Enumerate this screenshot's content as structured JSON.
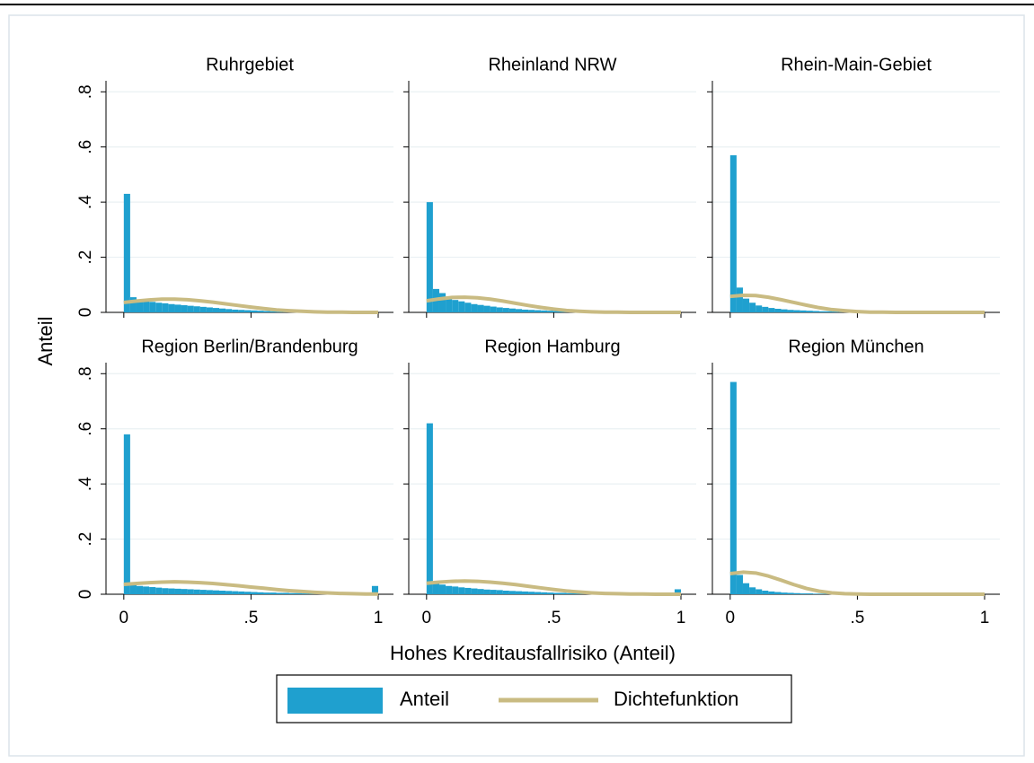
{
  "chart_data": {
    "type": "histogram",
    "ylabel": "Anteil",
    "xlabel": "Hohes Kreditausfallrisiko (Anteil)",
    "ylim": [
      0,
      0.84
    ],
    "yticks": [
      0,
      {
        "value": 0.2,
        "label": ".2"
      },
      {
        "value": 0.4,
        "label": ".4"
      },
      {
        "value": 0.6,
        "label": ".6"
      },
      {
        "value": 0.8,
        "label": ".8"
      }
    ],
    "xlim": [
      -0.07,
      1.06
    ],
    "xticks": [
      0,
      {
        "value": 0.5,
        "label": ".5"
      },
      1
    ],
    "grid": true,
    "series": [
      {
        "name": "Anteil",
        "color": "#1fa0cf"
      },
      {
        "name": "Dichtefunktion",
        "color": "#c9bb82"
      }
    ],
    "bins": [
      0,
      0.025,
      0.05,
      0.075,
      0.1,
      0.125,
      0.15,
      0.175,
      0.2,
      0.225,
      0.25,
      0.275,
      0.3,
      0.325,
      0.35,
      0.375,
      0.4,
      0.425,
      0.45,
      0.475,
      0.5,
      0.525,
      0.55,
      0.575,
      0.6,
      0.625,
      0.65,
      0.675,
      0.7,
      0.725,
      0.75,
      0.775,
      0.8,
      0.825,
      0.85,
      0.875,
      0.9,
      0.925,
      0.95,
      0.975,
      1
    ],
    "density_x": [
      0,
      0.05,
      0.1,
      0.15,
      0.2,
      0.25,
      0.3,
      0.35,
      0.4,
      0.45,
      0.5,
      0.55,
      0.6,
      0.65,
      0.7,
      0.75,
      0.8,
      0.85,
      0.9,
      0.95,
      1
    ],
    "panels": [
      {
        "title": "Ruhrgebiet",
        "values": [
          0.43,
          0.055,
          0.045,
          0.04,
          0.038,
          0.035,
          0.033,
          0.03,
          0.028,
          0.026,
          0.024,
          0.022,
          0.02,
          0.018,
          0.016,
          0.014,
          0.012,
          0.01,
          0.009,
          0.008,
          0.007,
          0.006,
          0.005,
          0.004,
          0.003,
          0.003,
          0.002,
          0.002,
          0.002,
          0.001,
          0.001,
          0.001,
          0.001,
          0.001,
          0.001,
          0.001,
          0.001,
          0.001,
          0.001,
          0.002
        ],
        "density": [
          0.036,
          0.041,
          0.045,
          0.048,
          0.048,
          0.046,
          0.042,
          0.037,
          0.031,
          0.025,
          0.019,
          0.014,
          0.009,
          0.006,
          0.004,
          0.002,
          0.001,
          0.001,
          0,
          0,
          0
        ]
      },
      {
        "title": "Rheinland NRW",
        "values": [
          0.4,
          0.085,
          0.07,
          0.05,
          0.045,
          0.04,
          0.035,
          0.03,
          0.027,
          0.024,
          0.021,
          0.018,
          0.016,
          0.014,
          0.012,
          0.01,
          0.009,
          0.008,
          0.007,
          0.006,
          0.005,
          0.004,
          0.003,
          0.003,
          0.002,
          0.002,
          0.002,
          0.001,
          0.001,
          0.001,
          0.001,
          0.001,
          0.001,
          0.001,
          0.001,
          0.001,
          0.001,
          0.001,
          0.001,
          0.002
        ],
        "density": [
          0.042,
          0.049,
          0.054,
          0.055,
          0.053,
          0.048,
          0.041,
          0.033,
          0.025,
          0.018,
          0.012,
          0.007,
          0.004,
          0.002,
          0.001,
          0.001,
          0,
          0,
          0,
          0,
          0
        ]
      },
      {
        "title": "Rhein-Main-Gebiet",
        "values": [
          0.57,
          0.09,
          0.05,
          0.035,
          0.025,
          0.02,
          0.016,
          0.013,
          0.011,
          0.009,
          0.008,
          0.007,
          0.006,
          0.005,
          0.004,
          0.004,
          0.003,
          0.003,
          0.002,
          0.002,
          0.002,
          0.002,
          0.001,
          0.001,
          0.001,
          0.001,
          0.001,
          0.001,
          0.001,
          0.001,
          0.001,
          0.001,
          0.001,
          0.001,
          0.001,
          0.001,
          0.001,
          0.001,
          0.001,
          0.004
        ],
        "density": [
          0.058,
          0.062,
          0.061,
          0.055,
          0.046,
          0.036,
          0.026,
          0.017,
          0.01,
          0.006,
          0.003,
          0.001,
          0.001,
          0,
          0,
          0,
          0,
          0,
          0,
          0,
          0
        ]
      },
      {
        "title": "Region Berlin/Brandenburg",
        "values": [
          0.58,
          0.035,
          0.03,
          0.028,
          0.026,
          0.024,
          0.022,
          0.021,
          0.02,
          0.019,
          0.018,
          0.017,
          0.016,
          0.015,
          0.014,
          0.013,
          0.012,
          0.011,
          0.01,
          0.009,
          0.008,
          0.007,
          0.006,
          0.006,
          0.005,
          0.005,
          0.004,
          0.004,
          0.003,
          0.003,
          0.003,
          0.003,
          0.002,
          0.002,
          0.002,
          0.002,
          0.002,
          0.002,
          0.002,
          0.03
        ],
        "density": [
          0.036,
          0.039,
          0.042,
          0.044,
          0.045,
          0.044,
          0.042,
          0.039,
          0.035,
          0.031,
          0.026,
          0.022,
          0.017,
          0.013,
          0.01,
          0.007,
          0.005,
          0.003,
          0.002,
          0.001,
          0.001
        ]
      },
      {
        "title": "Region Hamburg",
        "values": [
          0.62,
          0.04,
          0.035,
          0.03,
          0.028,
          0.025,
          0.023,
          0.021,
          0.019,
          0.017,
          0.016,
          0.015,
          0.013,
          0.012,
          0.011,
          0.01,
          0.009,
          0.008,
          0.007,
          0.006,
          0.005,
          0.005,
          0.004,
          0.004,
          0.003,
          0.003,
          0.003,
          0.002,
          0.002,
          0.002,
          0.002,
          0.002,
          0.001,
          0.001,
          0.001,
          0.001,
          0.001,
          0.001,
          0.001,
          0.018
        ],
        "density": [
          0.04,
          0.044,
          0.047,
          0.048,
          0.047,
          0.044,
          0.04,
          0.035,
          0.029,
          0.023,
          0.017,
          0.012,
          0.008,
          0.005,
          0.003,
          0.002,
          0.001,
          0.001,
          0,
          0,
          0
        ]
      },
      {
        "title": "Region München",
        "values": [
          0.77,
          0.07,
          0.04,
          0.025,
          0.018,
          0.013,
          0.01,
          0.008,
          0.006,
          0.005,
          0.004,
          0.003,
          0.003,
          0.002,
          0.002,
          0.002,
          0.001,
          0.001,
          0.001,
          0.001,
          0.001,
          0.001,
          0.001,
          0,
          0,
          0,
          0,
          0,
          0,
          0,
          0,
          0,
          0,
          0,
          0,
          0,
          0,
          0,
          0,
          0.002
        ],
        "density": [
          0.075,
          0.08,
          0.077,
          0.066,
          0.051,
          0.035,
          0.021,
          0.011,
          0.005,
          0.002,
          0.001,
          0,
          0,
          0,
          0,
          0,
          0,
          0,
          0,
          0,
          0
        ]
      }
    ]
  }
}
